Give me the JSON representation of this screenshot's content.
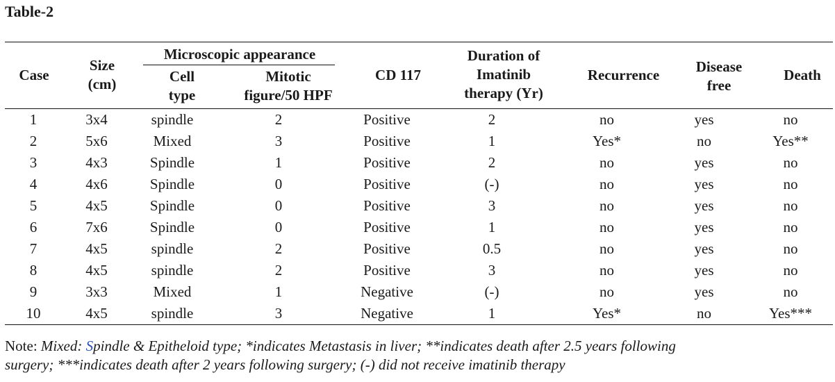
{
  "title": "Table-2",
  "headers": {
    "case": "Case",
    "size_line1": "Size",
    "size_line2": "(cm)",
    "group": "Microscopic appearance",
    "cell_line1": "Cell",
    "cell_line2": "type",
    "mitotic_line1": "Mitotic",
    "mitotic_line2": "figure/50 HPF",
    "cd117": "CD 117",
    "duration_line1": "Duration of",
    "duration_line2": "Imatinib",
    "duration_line3": "therapy (Yr)",
    "recurrence": "Recurrence",
    "disease_line1": "Disease",
    "disease_line2": "free",
    "death": "Death"
  },
  "rows": [
    [
      "1",
      "3x4",
      "spindle",
      "2",
      "Positive",
      "2",
      "no",
      "yes",
      "no"
    ],
    [
      "2",
      "5x6",
      "Mixed",
      "3",
      "Positive",
      "1",
      "Yes*",
      "no",
      "Yes**"
    ],
    [
      "3",
      "4x3",
      "Spindle",
      "1",
      "Positive",
      "2",
      "no",
      "yes",
      "no"
    ],
    [
      "4",
      "4x6",
      "Spindle",
      "0",
      "Positive",
      "(-)",
      "no",
      "yes",
      "no"
    ],
    [
      "5",
      "4x5",
      "Spindle",
      "0",
      "Positive",
      "3",
      "no",
      "yes",
      "no"
    ],
    [
      "6",
      "7x6",
      "Spindle",
      "0",
      "Positive",
      "1",
      "no",
      "yes",
      "no"
    ],
    [
      "7",
      "4x5",
      "spindle",
      "2",
      "Positive",
      "0.5",
      "no",
      "yes",
      "no"
    ],
    [
      "8",
      "4x5",
      "spindle",
      "2",
      "Positive",
      "3",
      "no",
      "yes",
      "no"
    ],
    [
      "9",
      "3x3",
      "Mixed",
      "1",
      "Negative",
      "(-)",
      "no",
      "yes",
      "no"
    ],
    [
      "10",
      "4x5",
      "spindle",
      "3",
      "Negative",
      "1",
      "Yes*",
      "no",
      "Yes***"
    ]
  ],
  "note": {
    "prefix": "Note: ",
    "part1": "Mixed: ",
    "s": "S",
    "part2": "pindle & Epitheloid type; *indicates Metastasis in liver; **indicates death after 2.5 years following",
    "part3": "surgery; ***indicates death after 2 years following surgery; (-) did not receive imatinib therapy"
  }
}
